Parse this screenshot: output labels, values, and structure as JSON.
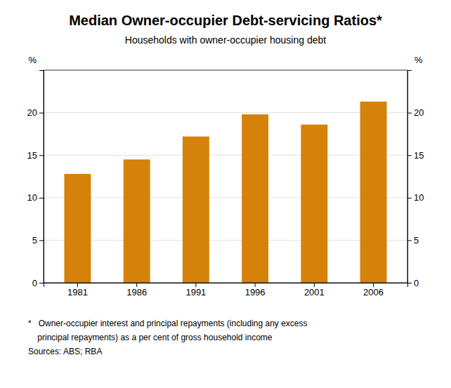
{
  "chart_data": {
    "type": "bar",
    "title": "Median Owner-occupier Debt-servicing Ratios*",
    "subtitle": "Households with owner-occupier housing debt",
    "categories": [
      "1981",
      "1986",
      "1991",
      "1996",
      "2001",
      "2006"
    ],
    "values": [
      12.8,
      14.5,
      17.2,
      19.8,
      18.6,
      21.3
    ],
    "color": "#D4820A",
    "ylim": [
      0,
      25
    ],
    "yticks": [
      0,
      5,
      10,
      15,
      20
    ],
    "y2lim": [
      0,
      25
    ],
    "y2ticks": [
      0,
      5,
      10,
      15,
      20
    ],
    "ylabel": "%",
    "y2label": "%",
    "grid": true,
    "footnotes": [
      "*   Owner-occupier interest and principal repayments (including any excess",
      "    principal repayments) as a per cent of gross household income",
      "Sources: ABS; RBA"
    ]
  }
}
